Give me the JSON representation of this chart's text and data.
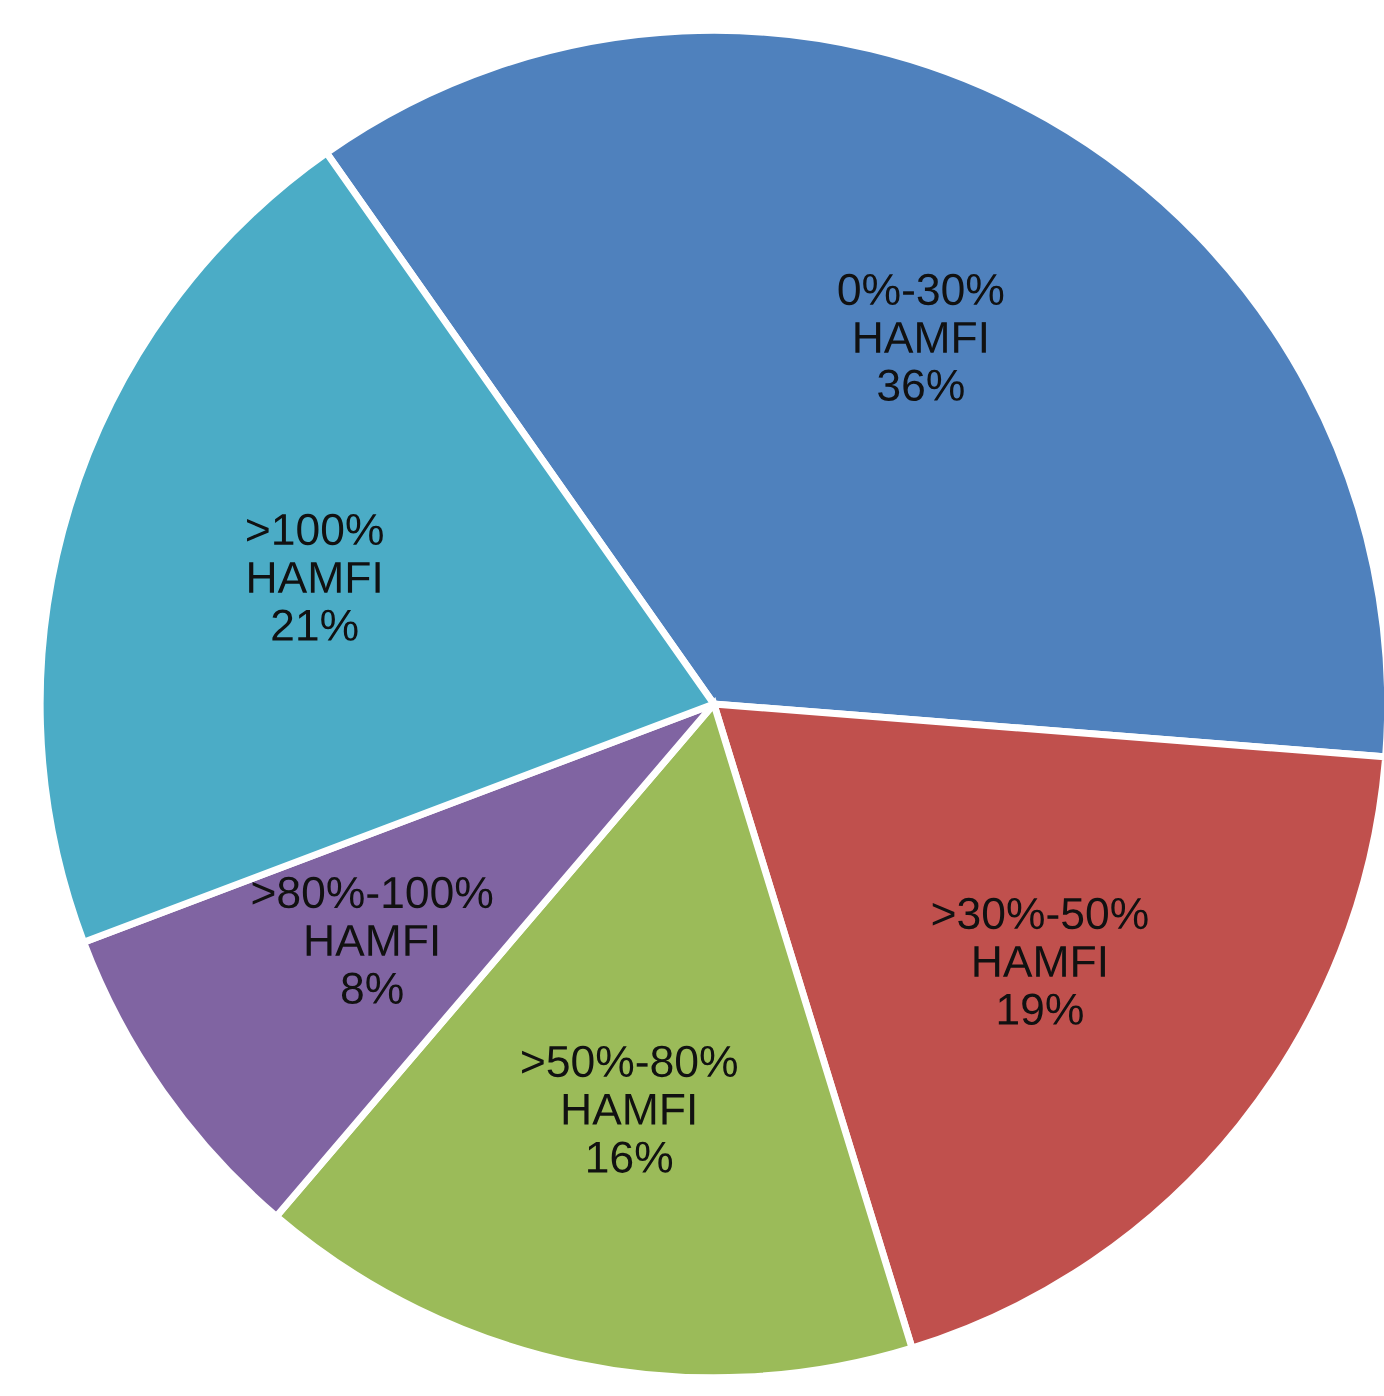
{
  "chart_data": {
    "type": "pie",
    "categories": [
      "0%-30%\nHAMFI",
      ">30%-50%\nHAMFI",
      ">50%-80%\nHAMFI",
      ">80%-100%\nHAMFI",
      ">100%\nHAMFI"
    ],
    "values": [
      36,
      19,
      16,
      8,
      21
    ],
    "value_labels": [
      "36%",
      "19%",
      "16%",
      "8%",
      "21%"
    ],
    "colors": [
      "#4f81bd",
      "#c0504d",
      "#9bbb59",
      "#8064a2",
      "#4bacc6"
    ],
    "legend": false
  }
}
